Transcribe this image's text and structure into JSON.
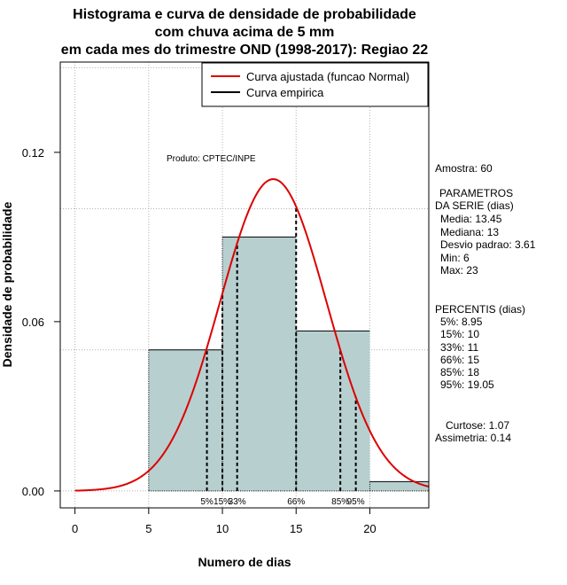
{
  "chart_data": {
    "type": "bar",
    "title_lines": [
      "Histograma e curva de densidade de probabilidade",
      "com chuva acima de 5 mm",
      "em cada mes do trimestre OND (1998-2017): Regiao 22"
    ],
    "xlabel": "Numero de dias",
    "ylabel": "Densidade de probabilidade",
    "xlim": [
      -1,
      24
    ],
    "ylim": [
      -0.006,
      0.152
    ],
    "x_ticks": [
      0,
      5,
      10,
      15,
      20
    ],
    "x_tick_labels": [
      "0",
      "5",
      "10",
      "15",
      "20"
    ],
    "y_ticks": [
      0.0,
      0.06,
      0.12
    ],
    "y_tick_labels": [
      "0.00",
      "0.06",
      "0.12"
    ],
    "grid_x": [
      0,
      5,
      10,
      15,
      20
    ],
    "grid_y": [
      0.0,
      0.05,
      0.1,
      0.15
    ],
    "bins": [
      {
        "x0": 5,
        "x1": 10,
        "density": 0.05
      },
      {
        "x0": 10,
        "x1": 15,
        "density": 0.09
      },
      {
        "x0": 15,
        "x1": 20,
        "density": 0.0567
      },
      {
        "x0": 20,
        "x1": 25,
        "density": 0.0033
      }
    ],
    "normal_fit": {
      "mean": 13.45,
      "sd": 3.61,
      "x_from": 0,
      "x_to": 24
    },
    "percentile_lines": [
      {
        "x": 8.95,
        "label": "5%"
      },
      {
        "x": 10,
        "label": "15%"
      },
      {
        "x": 11,
        "label": "33%"
      },
      {
        "x": 15,
        "label": "66%"
      },
      {
        "x": 18,
        "label": "85%"
      },
      {
        "x": 19.05,
        "label": "95%"
      }
    ],
    "legend": {
      "position": "top-right",
      "items": [
        {
          "label": "Curva ajustada (funcao Normal)",
          "color": "#dd0000"
        },
        {
          "label": "Curva empirica",
          "color": "#000000"
        }
      ]
    },
    "product_label": "Produto: CPTEC/INPE",
    "bar_color": "#b7cfcf",
    "curve_color": "#dd0000"
  },
  "stats": {
    "sample": "Amostra: 60",
    "params_header_1": "PARAMETROS",
    "params_header_2": "DA SERIE (dias)",
    "params": [
      "Media: 13.45",
      "Mediana: 13",
      "Desvio padrao: 3.61",
      "Min: 6",
      "Max: 23"
    ],
    "percentiles_header": "PERCENTIS (dias)",
    "percentiles": [
      "5%: 8.95",
      "15%: 10",
      "33%: 11",
      "66%: 15",
      "85%: 18",
      "95%: 19.05"
    ],
    "curtose": "Curtose: 1.07",
    "assimetria": "Assimetria: 0.14"
  }
}
